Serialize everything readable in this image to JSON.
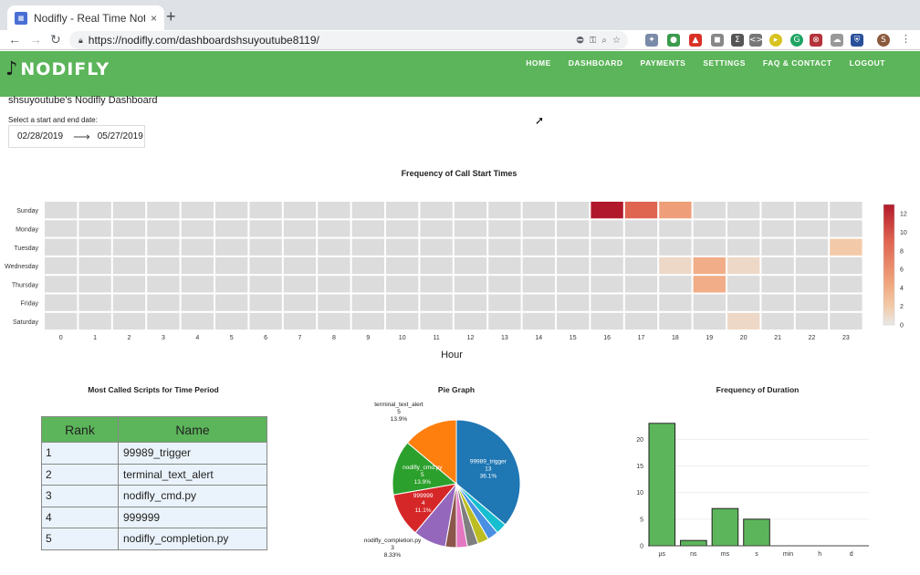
{
  "browser": {
    "tab_title": "Nodifly - Real Time Notificatio",
    "tab_close": "×",
    "new_tab": "+",
    "url": "https://nodifly.com/dashboardshsuyoutube8119/",
    "profile_initial": "S"
  },
  "header": {
    "logo": "NODIFLY",
    "nav": [
      "HOME",
      "DASHBOARD",
      "PAYMENTS",
      "SETTINGS",
      "FAQ & CONTACT",
      "LOGOUT"
    ]
  },
  "page": {
    "title": "shsuyoutube's Nodifly Dashboard",
    "date_label": "Select a start and end date:",
    "start_date": "02/28/2019",
    "end_date": "05/27/2019"
  },
  "chart_data": [
    {
      "type": "heatmap",
      "title": "Frequency of Call Start Times",
      "xlabel": "Hour",
      "x": [
        0,
        1,
        2,
        3,
        4,
        5,
        6,
        7,
        8,
        9,
        10,
        11,
        12,
        13,
        14,
        15,
        16,
        17,
        18,
        19,
        20,
        21,
        22,
        23
      ],
      "y": [
        "Sunday",
        "Monday",
        "Tuesday",
        "Wednesday",
        "Thursday",
        "Friday",
        "Saturday"
      ],
      "values": [
        [
          0,
          0,
          0,
          0,
          0,
          0,
          0,
          0,
          0,
          0,
          0,
          0,
          0,
          0,
          0,
          0,
          13,
          9,
          5,
          0,
          0,
          0,
          0,
          0
        ],
        [
          0,
          0,
          0,
          0,
          0,
          0,
          0,
          0,
          0,
          0,
          0,
          0,
          0,
          0,
          0,
          0,
          0,
          0,
          0,
          0,
          0,
          0,
          0,
          0
        ],
        [
          0,
          0,
          0,
          0,
          0,
          0,
          0,
          0,
          0,
          0,
          0,
          0,
          0,
          0,
          0,
          0,
          0,
          0,
          0,
          0,
          0,
          0,
          0,
          2
        ],
        [
          0,
          0,
          0,
          0,
          0,
          0,
          0,
          0,
          0,
          0,
          0,
          0,
          0,
          0,
          0,
          0,
          0,
          0,
          1,
          4,
          1,
          0,
          0,
          0
        ],
        [
          0,
          0,
          0,
          0,
          0,
          0,
          0,
          0,
          0,
          0,
          0,
          0,
          0,
          0,
          0,
          0,
          0,
          0,
          0,
          4,
          0,
          0,
          0,
          0
        ],
        [
          0,
          0,
          0,
          0,
          0,
          0,
          0,
          0,
          0,
          0,
          0,
          0,
          0,
          0,
          0,
          0,
          0,
          0,
          0,
          0,
          0,
          0,
          0,
          0
        ],
        [
          0,
          0,
          0,
          0,
          0,
          0,
          0,
          0,
          0,
          0,
          0,
          0,
          0,
          0,
          0,
          0,
          0,
          0,
          0,
          0,
          1,
          0,
          0,
          0
        ]
      ],
      "colorbar_ticks": [
        0,
        2,
        4,
        6,
        8,
        10,
        12
      ],
      "zmax": 13
    },
    {
      "type": "table",
      "title": "Most Called Scripts for Time Period",
      "columns": [
        "Rank",
        "Name"
      ],
      "rows": [
        [
          "1",
          "99989_trigger"
        ],
        [
          "2",
          "terminal_text_alert"
        ],
        [
          "3",
          "nodifly_cmd.py"
        ],
        [
          "4",
          "999999"
        ],
        [
          "5",
          "nodifly_completion.py"
        ]
      ]
    },
    {
      "type": "pie",
      "title": "Pie Graph",
      "slices": [
        {
          "label": "99989_trigger",
          "value": 13,
          "pct": "36.1%",
          "color": "#1f77b4"
        },
        {
          "label": "",
          "value": 1,
          "pct": "",
          "color": "#17becf"
        },
        {
          "label": "",
          "value": 1,
          "pct": "",
          "color": "#4a90e2"
        },
        {
          "label": "",
          "value": 1,
          "pct": "",
          "color": "#bcbd22"
        },
        {
          "label": "",
          "value": 1,
          "pct": "",
          "color": "#7f7f7f"
        },
        {
          "label": "",
          "value": 1,
          "pct": "",
          "color": "#e377c2"
        },
        {
          "label": "",
          "value": 1,
          "pct": "",
          "color": "#8c564b"
        },
        {
          "label": "nodifly_completion.py",
          "value": 3,
          "pct": "8.33%",
          "color": "#9467bd"
        },
        {
          "label": "999999",
          "value": 4,
          "pct": "11.1%",
          "color": "#d62728"
        },
        {
          "label": "nodifly_cmd.py",
          "value": 5,
          "pct": "13.9%",
          "color": "#2ca02c"
        },
        {
          "label": "terminal_text_alert",
          "value": 5,
          "pct": "13.9%",
          "color": "#ff7f0e"
        }
      ]
    },
    {
      "type": "bar",
      "title": "Frequency of Duration",
      "categories": [
        "µs",
        "ns",
        "ms",
        "s",
        "min",
        "h",
        "d"
      ],
      "values": [
        23,
        1,
        7,
        5,
        0,
        0,
        0
      ],
      "ylim": [
        0,
        24
      ],
      "yticks": [
        0,
        5,
        10,
        15,
        20
      ],
      "color": "#5cb55a"
    }
  ]
}
